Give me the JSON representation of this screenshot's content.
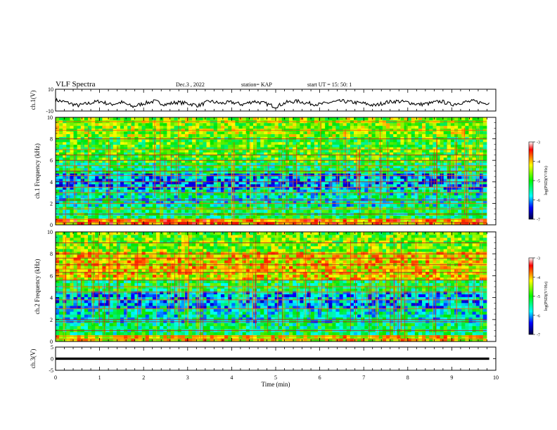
{
  "header": {
    "title": "VLF Spectra",
    "date": "Dec.3 , 2022",
    "station": "station= KAP",
    "start": "start UT = 15: 50: 1"
  },
  "chart_data": [
    {
      "type": "line",
      "panel": "ch1-waveform",
      "ylabel": "ch.1(V)",
      "ylim": [
        -10,
        10
      ],
      "yticks": [
        "10",
        "-10"
      ],
      "xlim": [
        0,
        10
      ],
      "series": [
        {
          "x": [
            0,
            0.25,
            0.5,
            0.75,
            1,
            1.25,
            1.5,
            1.75,
            2,
            2.25,
            2.5,
            2.75,
            3,
            3.25,
            3.5,
            3.75,
            4,
            4.25,
            4.5,
            4.75,
            5,
            5.25,
            5.5,
            5.75,
            6,
            6.25,
            6.5,
            6.75,
            7,
            7.25,
            7.5,
            7.75,
            8,
            8.25,
            8.5,
            8.75,
            9,
            9.25,
            9.5,
            9.75,
            9.85
          ],
          "y": [
            0,
            -2,
            -5,
            -3,
            -1,
            -4,
            -2,
            -6,
            -3,
            -1,
            -4,
            -2,
            -3,
            -5,
            -1,
            -3,
            -2,
            -4,
            -1,
            -3,
            -6,
            -2,
            -1,
            -3,
            -4,
            -2,
            -1,
            -2,
            -3,
            -5,
            -2,
            -1,
            -2,
            -4,
            -3,
            -1,
            -4,
            -2,
            -1,
            -3,
            -2
          ]
        }
      ]
    },
    {
      "type": "heatmap",
      "panel": "ch1-spectrogram",
      "ylabel": "ch.1 Frequency (kHz)",
      "yticks": [
        "0",
        "2",
        "4",
        "6",
        "8",
        "10"
      ],
      "ylim": [
        0,
        10
      ],
      "xlim": [
        0,
        10
      ],
      "colorbar": {
        "label": "log(PSD)(V²/Hz)",
        "ticks": [
          "-3",
          "-4",
          "-5",
          "-6",
          "-7"
        ],
        "range": [
          -7,
          -3
        ]
      },
      "horizontal_lines_khz": [
        0.2,
        0.5,
        1.0,
        1.5,
        2.0,
        2.3,
        3.0,
        3.5,
        4.0,
        4.6,
        5.0,
        5.5,
        6.0,
        6.5,
        7.0,
        8.0,
        8.8,
        9.6
      ],
      "band_levels": [
        {
          "from": 0,
          "to": 0.6,
          "level": -3.9
        },
        {
          "from": 0.6,
          "to": 1.7,
          "level": -5.2
        },
        {
          "from": 1.7,
          "to": 3.3,
          "level": -5.6
        },
        {
          "from": 3.3,
          "to": 4.8,
          "level": -6.0
        },
        {
          "from": 4.8,
          "to": 5.8,
          "level": -5.3
        },
        {
          "from": 5.8,
          "to": 8.2,
          "level": -4.9
        },
        {
          "from": 8.2,
          "to": 10,
          "level": -4.6
        }
      ]
    },
    {
      "type": "heatmap",
      "panel": "ch2-spectrogram",
      "ylabel": "ch.2 Frequency (kHz)",
      "yticks": [
        "0",
        "2",
        "4",
        "6",
        "8",
        "10"
      ],
      "ylim": [
        0,
        10
      ],
      "xlim": [
        0,
        10
      ],
      "colorbar": {
        "label": "log(PSD)(V²/Hz)",
        "ticks": [
          "-3",
          "-4",
          "-5",
          "-6",
          "-7"
        ],
        "range": [
          -7,
          -3
        ]
      },
      "horizontal_lines_khz": [
        0.2,
        0.5,
        1.0,
        1.8,
        2.0,
        3.0,
        3.8,
        4.5,
        5.0,
        5.6,
        6.3,
        6.6,
        7.0,
        7.6,
        8.0,
        9.0
      ],
      "band_levels": [
        {
          "from": 0,
          "to": 0.6,
          "level": -4.2
        },
        {
          "from": 0.6,
          "to": 1.7,
          "level": -5.3
        },
        {
          "from": 1.7,
          "to": 3.0,
          "level": -5.6
        },
        {
          "from": 3.0,
          "to": 4.6,
          "level": -5.9
        },
        {
          "from": 4.6,
          "to": 5.6,
          "level": -5.2
        },
        {
          "from": 5.6,
          "to": 8.2,
          "level": -4.2
        },
        {
          "from": 8.2,
          "to": 10,
          "level": -4.7
        }
      ]
    },
    {
      "type": "line",
      "panel": "ch3-waveform",
      "ylabel": "ch.3(V)",
      "ylim": [
        -5,
        5
      ],
      "yticks": [
        "5",
        "0",
        "-5"
      ],
      "xlim": [
        0,
        10
      ],
      "xlabel": "Time (min)",
      "xticks": [
        "0",
        "1",
        "2",
        "3",
        "4",
        "5",
        "6",
        "7",
        "8",
        "9",
        "10"
      ],
      "series": [
        {
          "x": [
            0,
            9.85
          ],
          "y": [
            0,
            0
          ],
          "band_halfwidth": 0.5
        }
      ]
    }
  ]
}
